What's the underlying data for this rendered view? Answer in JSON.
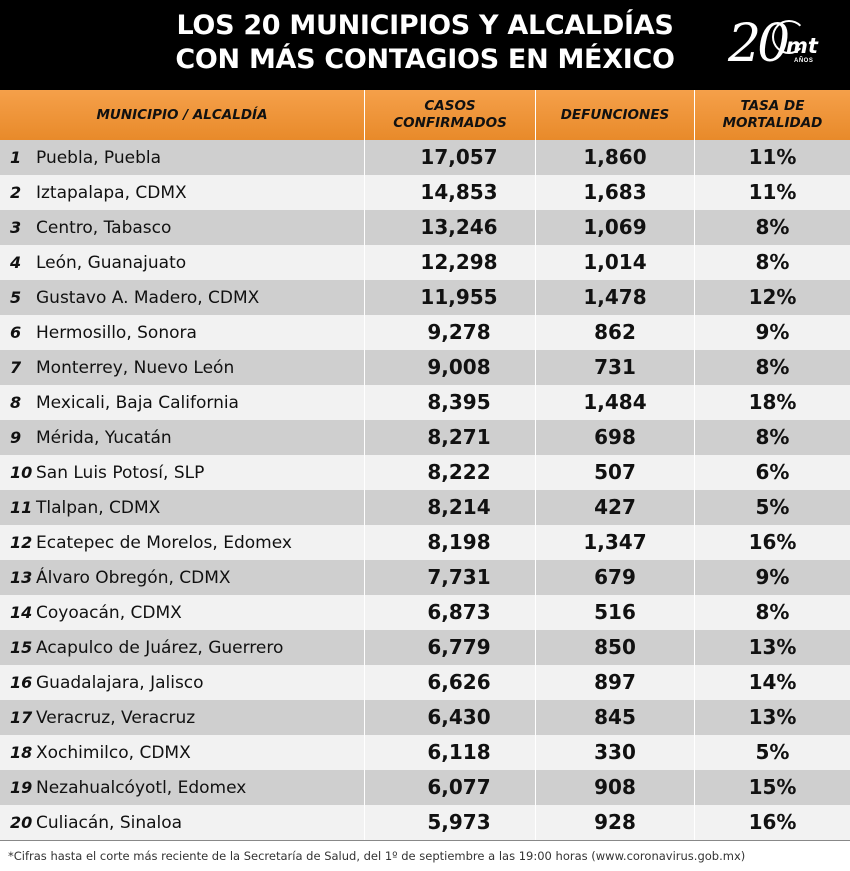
{
  "header": {
    "title_line1": "LOS 20 MUNICIPIOS Y ALCALDÍAS",
    "title_line2": "CON MÁS CONTAGIOS EN MÉXICO",
    "logo": {
      "number": "20",
      "brand": "mt",
      "sub": "AÑOS"
    }
  },
  "columns": {
    "municipio": "MUNICIPIO / ALCALDÍA",
    "casos_line1": "CASOS",
    "casos_line2": "CONFIRMADOS",
    "defunciones": "DEFUNCIONES",
    "tasa_line1": "TASA DE",
    "tasa_line2": "MORTALIDAD"
  },
  "rows": [
    {
      "rank": "1",
      "name": "Puebla, Puebla",
      "casos": "17,057",
      "defunciones": "1,860",
      "tasa": "11%"
    },
    {
      "rank": "2",
      "name": "Iztapalapa, CDMX",
      "casos": "14,853",
      "defunciones": "1,683",
      "tasa": "11%"
    },
    {
      "rank": "3",
      "name": "Centro, Tabasco",
      "casos": "13,246",
      "defunciones": "1,069",
      "tasa": "8%"
    },
    {
      "rank": "4",
      "name": "León, Guanajuato",
      "casos": "12,298",
      "defunciones": "1,014",
      "tasa": "8%"
    },
    {
      "rank": "5",
      "name": "Gustavo A. Madero, CDMX",
      "casos": "11,955",
      "defunciones": "1,478",
      "tasa": "12%"
    },
    {
      "rank": "6",
      "name": "Hermosillo, Sonora",
      "casos": "9,278",
      "defunciones": "862",
      "tasa": "9%"
    },
    {
      "rank": "7",
      "name": "Monterrey, Nuevo León",
      "casos": "9,008",
      "defunciones": "731",
      "tasa": "8%"
    },
    {
      "rank": "8",
      "name": "Mexicali, Baja California",
      "casos": "8,395",
      "defunciones": "1,484",
      "tasa": "18%"
    },
    {
      "rank": "9",
      "name": "Mérida, Yucatán",
      "casos": "8,271",
      "defunciones": "698",
      "tasa": "8%"
    },
    {
      "rank": "10",
      "name": "San Luis Potosí, SLP",
      "casos": "8,222",
      "defunciones": "507",
      "tasa": "6%"
    },
    {
      "rank": "11",
      "name": "Tlalpan, CDMX",
      "casos": "8,214",
      "defunciones": "427",
      "tasa": "5%"
    },
    {
      "rank": "12",
      "name": "Ecatepec de Morelos, Edomex",
      "casos": "8,198",
      "defunciones": "1,347",
      "tasa": "16%"
    },
    {
      "rank": "13",
      "name": "Álvaro Obregón, CDMX",
      "casos": "7,731",
      "defunciones": "679",
      "tasa": "9%"
    },
    {
      "rank": "14",
      "name": "Coyoacán, CDMX",
      "casos": "6,873",
      "defunciones": "516",
      "tasa": "8%"
    },
    {
      "rank": "15",
      "name": "Acapulco de Juárez, Guerrero",
      "casos": "6,779",
      "defunciones": "850",
      "tasa": "13%"
    },
    {
      "rank": "16",
      "name": "Guadalajara, Jalisco",
      "casos": "6,626",
      "defunciones": "897",
      "tasa": "14%"
    },
    {
      "rank": "17",
      "name": "Veracruz, Veracruz",
      "casos": "6,430",
      "defunciones": "845",
      "tasa": "13%"
    },
    {
      "rank": "18",
      "name": "Xochimilco, CDMX",
      "casos": "6,118",
      "defunciones": "330",
      "tasa": "5%"
    },
    {
      "rank": "19",
      "name": "Nezahualcóyotl, Edomex",
      "casos": "6,077",
      "defunciones": "908",
      "tasa": "15%"
    },
    {
      "rank": "20",
      "name": "Culiacán, Sinaloa",
      "casos": "5,973",
      "defunciones": "928",
      "tasa": "16%"
    }
  ],
  "footer": {
    "note": "*Cifras hasta el corte más reciente de la Secretaría de Salud, del 1º de septiembre a las 19:00 horas (www.coronavirus.gob.mx)"
  },
  "colors": {
    "header_bg": "#000000",
    "column_header_bg": "#ee922f",
    "row_odd": "#cfcfcf",
    "row_even": "#f2f2f2"
  }
}
